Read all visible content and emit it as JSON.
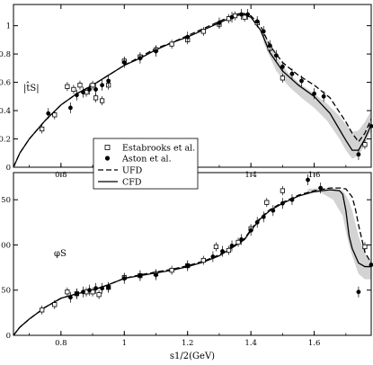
{
  "chart_data": [
    {
      "type": "line",
      "panel": "top",
      "ylabel": "|t̂S|",
      "xlabel": "",
      "xlim": [
        0.65,
        1.78
      ],
      "ylim": [
        0,
        1.15
      ],
      "xticks": [
        "0.8",
        "1",
        "1.2",
        "1.4",
        "1.6"
      ],
      "yticks": [
        "0",
        "0.2",
        "0.4",
        "0.6",
        "0.8",
        "1"
      ],
      "band": {
        "x": [
          1.44,
          1.48,
          1.52,
          1.56,
          1.6,
          1.64,
          1.68,
          1.7,
          1.72,
          1.74,
          1.76,
          1.78
        ],
        "upper": [
          0.95,
          0.78,
          0.66,
          0.58,
          0.52,
          0.45,
          0.36,
          0.3,
          0.25,
          0.26,
          0.32,
          0.4
        ],
        "lower": [
          0.88,
          0.68,
          0.57,
          0.49,
          0.42,
          0.33,
          0.2,
          0.12,
          0.06,
          0.08,
          0.16,
          0.26
        ]
      },
      "series": [
        {
          "name": "UFD",
          "style": "dashed",
          "x": [
            0.65,
            0.67,
            0.7,
            0.75,
            0.8,
            0.85,
            0.9,
            0.95,
            1.0,
            1.05,
            1.1,
            1.15,
            1.2,
            1.25,
            1.3,
            1.34,
            1.37,
            1.4,
            1.43,
            1.46,
            1.5,
            1.55,
            1.6,
            1.65,
            1.7,
            1.72,
            1.74,
            1.76,
            1.78
          ],
          "y": [
            0.0,
            0.1,
            0.2,
            0.33,
            0.44,
            0.52,
            0.58,
            0.65,
            0.72,
            0.78,
            0.84,
            0.88,
            0.93,
            0.98,
            1.03,
            1.07,
            1.09,
            1.07,
            1.0,
            0.86,
            0.74,
            0.65,
            0.58,
            0.49,
            0.32,
            0.24,
            0.18,
            0.24,
            0.34
          ]
        },
        {
          "name": "CFD",
          "style": "solid",
          "x": [
            0.65,
            0.67,
            0.7,
            0.75,
            0.8,
            0.85,
            0.9,
            0.95,
            1.0,
            1.05,
            1.1,
            1.15,
            1.2,
            1.25,
            1.3,
            1.34,
            1.37,
            1.4,
            1.43,
            1.46,
            1.5,
            1.55,
            1.6,
            1.65,
            1.7,
            1.72,
            1.74,
            1.76,
            1.78
          ],
          "y": [
            0.0,
            0.1,
            0.2,
            0.33,
            0.44,
            0.52,
            0.58,
            0.65,
            0.72,
            0.77,
            0.83,
            0.88,
            0.92,
            0.97,
            1.02,
            1.06,
            1.08,
            1.06,
            0.97,
            0.81,
            0.68,
            0.58,
            0.5,
            0.38,
            0.19,
            0.12,
            0.12,
            0.2,
            0.3
          ]
        },
        {
          "name": "Estabrooks et al.",
          "style": "open-square",
          "x": [
            0.74,
            0.78,
            0.82,
            0.84,
            0.86,
            0.88,
            0.9,
            0.91,
            0.93,
            0.95,
            1.0,
            1.05,
            1.1,
            1.15,
            1.2,
            1.25,
            1.3,
            1.33,
            1.35,
            1.38,
            1.42,
            1.46,
            1.5,
            1.76
          ],
          "y": [
            0.27,
            0.37,
            0.57,
            0.55,
            0.58,
            0.53,
            0.58,
            0.49,
            0.47,
            0.58,
            0.75,
            0.78,
            0.83,
            0.87,
            0.9,
            0.96,
            1.01,
            1.05,
            1.07,
            1.06,
            1.02,
            0.84,
            0.63,
            0.16
          ]
        },
        {
          "name": "Aston et al.",
          "style": "filled-circle",
          "x": [
            0.76,
            0.83,
            0.85,
            0.87,
            0.89,
            0.91,
            0.93,
            0.95,
            1.0,
            1.05,
            1.1,
            1.2,
            1.3,
            1.34,
            1.37,
            1.39,
            1.42,
            1.44,
            1.46,
            1.48,
            1.5,
            1.53,
            1.56,
            1.6,
            1.63,
            1.74,
            1.78
          ],
          "y": [
            0.38,
            0.42,
            0.51,
            0.53,
            0.55,
            0.55,
            0.58,
            0.61,
            0.74,
            0.77,
            0.82,
            0.92,
            1.02,
            1.06,
            1.08,
            1.08,
            1.03,
            0.96,
            0.86,
            0.79,
            0.71,
            0.66,
            0.61,
            0.52,
            0.5,
            0.09,
            0.29
          ]
        }
      ],
      "legend": {
        "position": "lower-center",
        "entries": [
          "Estabrooks et al.",
          "Aston et al.",
          "UFD",
          "CFD"
        ]
      }
    },
    {
      "type": "line",
      "panel": "bottom",
      "ylabel": "φS",
      "xlabel": "s1/2(GeV)",
      "xlim": [
        0.65,
        1.78
      ],
      "ylim": [
        0,
        180
      ],
      "xticks": [
        "0.8",
        "1",
        "1.2",
        "1.4",
        "1.6"
      ],
      "yticks": [
        "0",
        "50",
        "100",
        "150"
      ],
      "band": {
        "x": [
          1.58,
          1.62,
          1.66,
          1.69,
          1.7,
          1.71,
          1.72,
          1.74,
          1.76,
          1.78
        ],
        "upper": [
          162,
          163,
          163,
          160,
          155,
          148,
          138,
          110,
          90,
          82
        ],
        "lower": [
          157,
          158,
          150,
          132,
          115,
          100,
          88,
          68,
          62,
          62
        ]
      },
      "series": [
        {
          "name": "UFD",
          "style": "dashed",
          "x": [
            0.65,
            0.67,
            0.7,
            0.75,
            0.8,
            0.85,
            0.9,
            0.95,
            1.0,
            1.05,
            1.1,
            1.15,
            1.2,
            1.25,
            1.3,
            1.35,
            1.38,
            1.4,
            1.43,
            1.46,
            1.5,
            1.55,
            1.6,
            1.65,
            1.68,
            1.7,
            1.72,
            1.73,
            1.74,
            1.76,
            1.78
          ],
          "y": [
            0,
            9,
            18,
            31,
            41,
            46,
            50,
            56,
            63,
            67,
            70,
            73,
            77,
            82,
            89,
            100,
            107,
            117,
            130,
            139,
            147,
            155,
            160,
            163,
            163,
            162,
            153,
            140,
            122,
            92,
            80
          ]
        },
        {
          "name": "CFD",
          "style": "solid",
          "x": [
            0.65,
            0.67,
            0.7,
            0.75,
            0.8,
            0.85,
            0.9,
            0.95,
            1.0,
            1.05,
            1.1,
            1.15,
            1.2,
            1.25,
            1.3,
            1.35,
            1.38,
            1.4,
            1.43,
            1.46,
            1.5,
            1.55,
            1.6,
            1.65,
            1.68,
            1.69,
            1.7,
            1.71,
            1.72,
            1.74,
            1.76,
            1.78
          ],
          "y": [
            0,
            9,
            18,
            31,
            41,
            46,
            50,
            56,
            63,
            66,
            69,
            72,
            76,
            81,
            88,
            99,
            106,
            116,
            129,
            138,
            146,
            154,
            159,
            161,
            160,
            156,
            138,
            110,
            96,
            80,
            76,
            76
          ]
        },
        {
          "name": "Estabrooks et al.",
          "style": "open-square",
          "x": [
            0.74,
            0.78,
            0.82,
            0.85,
            0.88,
            0.9,
            0.92,
            0.95,
            1.0,
            1.05,
            1.1,
            1.15,
            1.2,
            1.25,
            1.29,
            1.33,
            1.36,
            1.4,
            1.45,
            1.5,
            1.76
          ],
          "y": [
            28,
            34,
            48,
            46,
            48,
            48,
            45,
            53,
            64,
            66,
            68,
            72,
            77,
            83,
            98,
            94,
            103,
            118,
            147,
            160,
            98
          ]
        },
        {
          "name": "Aston et al.",
          "style": "filled-circle",
          "x": [
            0.83,
            0.85,
            0.87,
            0.89,
            0.91,
            0.93,
            0.95,
            1.0,
            1.05,
            1.1,
            1.2,
            1.28,
            1.31,
            1.34,
            1.37,
            1.4,
            1.42,
            1.44,
            1.47,
            1.5,
            1.53,
            1.58,
            1.62,
            1.74,
            1.78
          ],
          "y": [
            42,
            46,
            48,
            50,
            52,
            52,
            53,
            63,
            66,
            67,
            77,
            87,
            93,
            99,
            106,
            116,
            125,
            131,
            138,
            146,
            150,
            172,
            163,
            48,
            78
          ]
        }
      ]
    }
  ]
}
